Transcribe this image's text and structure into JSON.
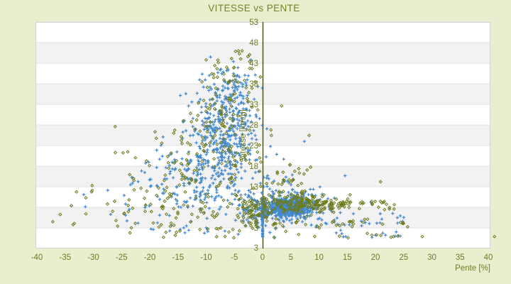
{
  "page": {
    "background": "#e9efce"
  },
  "chart_data": {
    "type": "scatter",
    "title": "VITESSE vs PENTE",
    "xlabel": "Pente [%]",
    "ylabel": "Vitesse [km/h]",
    "x_ticks": [
      -40,
      -35,
      -30,
      -25,
      -20,
      -15,
      -10,
      -5,
      0,
      5,
      10,
      15,
      20,
      25,
      30,
      35,
      40
    ],
    "y_ticks": [
      53,
      48,
      43,
      38,
      33,
      28,
      23,
      18,
      13,
      8,
      3
    ],
    "y_bottom_label": "3",
    "xlim": [
      -40,
      40
    ],
    "ylim_top": 53,
    "ylim_bottom": -2,
    "grid": "horizontal-bands",
    "legend": "none",
    "colors": {
      "page_bg": "#e9efce",
      "plot_bg": "#ffffff",
      "band_gray": "#f2f2f2",
      "gridline": "#e3e3e3",
      "plot_border": "#d4d4d4",
      "zero_axis": "#4a5416",
      "label_text": "#6e7b28",
      "title_text": "#77822c",
      "series_blue": "#4289cf",
      "series_olive": "#6e7b1c"
    },
    "seed": 20,
    "series": [
      {
        "name": "series-blue",
        "marker": "plus",
        "color": "#4289cf",
        "clusters": [
          {
            "n": 230,
            "cx": -6.3,
            "cy": 28.5,
            "sx": 2.3,
            "sy": 5.5,
            "ymax": 44
          },
          {
            "n": 190,
            "cx": -8.5,
            "cy": 21,
            "sx": 3.8,
            "sy": 5.5
          },
          {
            "n": 110,
            "cx": -12,
            "cy": 14.5,
            "sx": 5,
            "sy": 4.5
          },
          {
            "n": 60,
            "cx": -5.2,
            "cy": 37,
            "sx": 2.4,
            "sy": 3.2,
            "ymax": 44.5
          },
          {
            "n": 45,
            "cx": -16,
            "cy": 9,
            "sx": 6.5,
            "sy": 3.5,
            "xmin": -33
          },
          {
            "n": 80,
            "cx": -1.8,
            "cy": 7,
            "sx": 1.4,
            "sy": 2.5,
            "xmax": -0.1
          },
          {
            "n": 470,
            "cx": 4.6,
            "cy": 8,
            "sx": 2.1,
            "sy": 1.15,
            "xmin": 0.4,
            "xmax": 12,
            "ymin": 4.5,
            "ymax": 12
          },
          {
            "n": 130,
            "cx": 5.5,
            "cy": 8.5,
            "sx": 3.6,
            "sy": 2.8,
            "xmin": 0.2
          },
          {
            "kind": "s",
            "n": 60,
            "x": 0,
            "y0": 0.8,
            "y1": 10.5
          },
          {
            "kind": "u",
            "n": 30,
            "x0": 9,
            "x1": 26,
            "cy": 5,
            "sy": 1.3
          },
          {
            "n": 20,
            "cx": 3.5,
            "cy": 15,
            "sx": 2.5,
            "sy": 3
          },
          {
            "kind": "u",
            "n": 8,
            "x0": 12,
            "x1": 25,
            "cy": 1.1,
            "sy": 0.4
          },
          {
            "kind": "u",
            "n": 12,
            "x0": -20,
            "x1": -1,
            "cy": 2.5,
            "sy": 1
          }
        ],
        "points": [
          [
            -31.7,
            11.1
          ],
          [
            7.4,
            24.0
          ],
          [
            1.4,
            22.8
          ],
          [
            19.2,
            9.2
          ],
          [
            14.7,
            0.9
          ],
          [
            19.4,
            0.7
          ],
          [
            23.5,
            1.0
          ],
          [
            -24.3,
            6.1
          ]
        ]
      },
      {
        "name": "series-olive",
        "marker": "diamond",
        "color": "#6e7b1c",
        "clusters": [
          {
            "n": 85,
            "cx": -6.5,
            "cy": 31,
            "sx": 3.2,
            "sy": 6.5,
            "ymax": 45.5
          },
          {
            "n": 120,
            "cx": -11,
            "cy": 18,
            "sx": 6,
            "sy": 6
          },
          {
            "n": 60,
            "cx": -20,
            "cy": 8.5,
            "sx": 8,
            "sy": 3.5,
            "xmin": -38
          },
          {
            "n": 70,
            "cx": -1.5,
            "cy": 6.5,
            "sx": 1.5,
            "sy": 2.2
          },
          {
            "n": 170,
            "cx": 8,
            "cy": 8.8,
            "sx": 3.8,
            "sy": 1.1,
            "xmin": 0.3
          },
          {
            "kind": "u",
            "n": 30,
            "x0": 12,
            "x1": 24,
            "cy": 8.8,
            "sy": 0.7
          },
          {
            "n": 45,
            "cx": 4,
            "cy": 13.5,
            "sx": 3,
            "sy": 2.5,
            "xmin": -0.5
          },
          {
            "kind": "u",
            "n": 35,
            "x0": 1,
            "x1": 27,
            "cy": 4.2,
            "sy": 0.8
          },
          {
            "kind": "u",
            "n": 12,
            "x0": 2,
            "x1": 24,
            "cy": 1.0,
            "sy": 0.35
          },
          {
            "kind": "u",
            "n": 20,
            "x0": -24,
            "x1": -1,
            "cy": 2.5,
            "sy": 1
          },
          {
            "n": 15,
            "cx": -4,
            "cy": 42.5,
            "sx": 2.2,
            "sy": 1.8,
            "ymax": 46
          }
        ],
        "points": [
          [
            -37.2,
            4.5
          ],
          [
            -33.6,
            3.8
          ],
          [
            -30.2,
            12.1
          ],
          [
            -26.1,
            21.3
          ],
          [
            41.1,
            0.9
          ],
          [
            28.3,
            0.9
          ],
          [
            24.8,
            4.1
          ],
          [
            20.9,
            14.2
          ],
          [
            -4.1,
            45.3
          ],
          [
            -2.6,
            44.6
          ]
        ]
      }
    ]
  }
}
